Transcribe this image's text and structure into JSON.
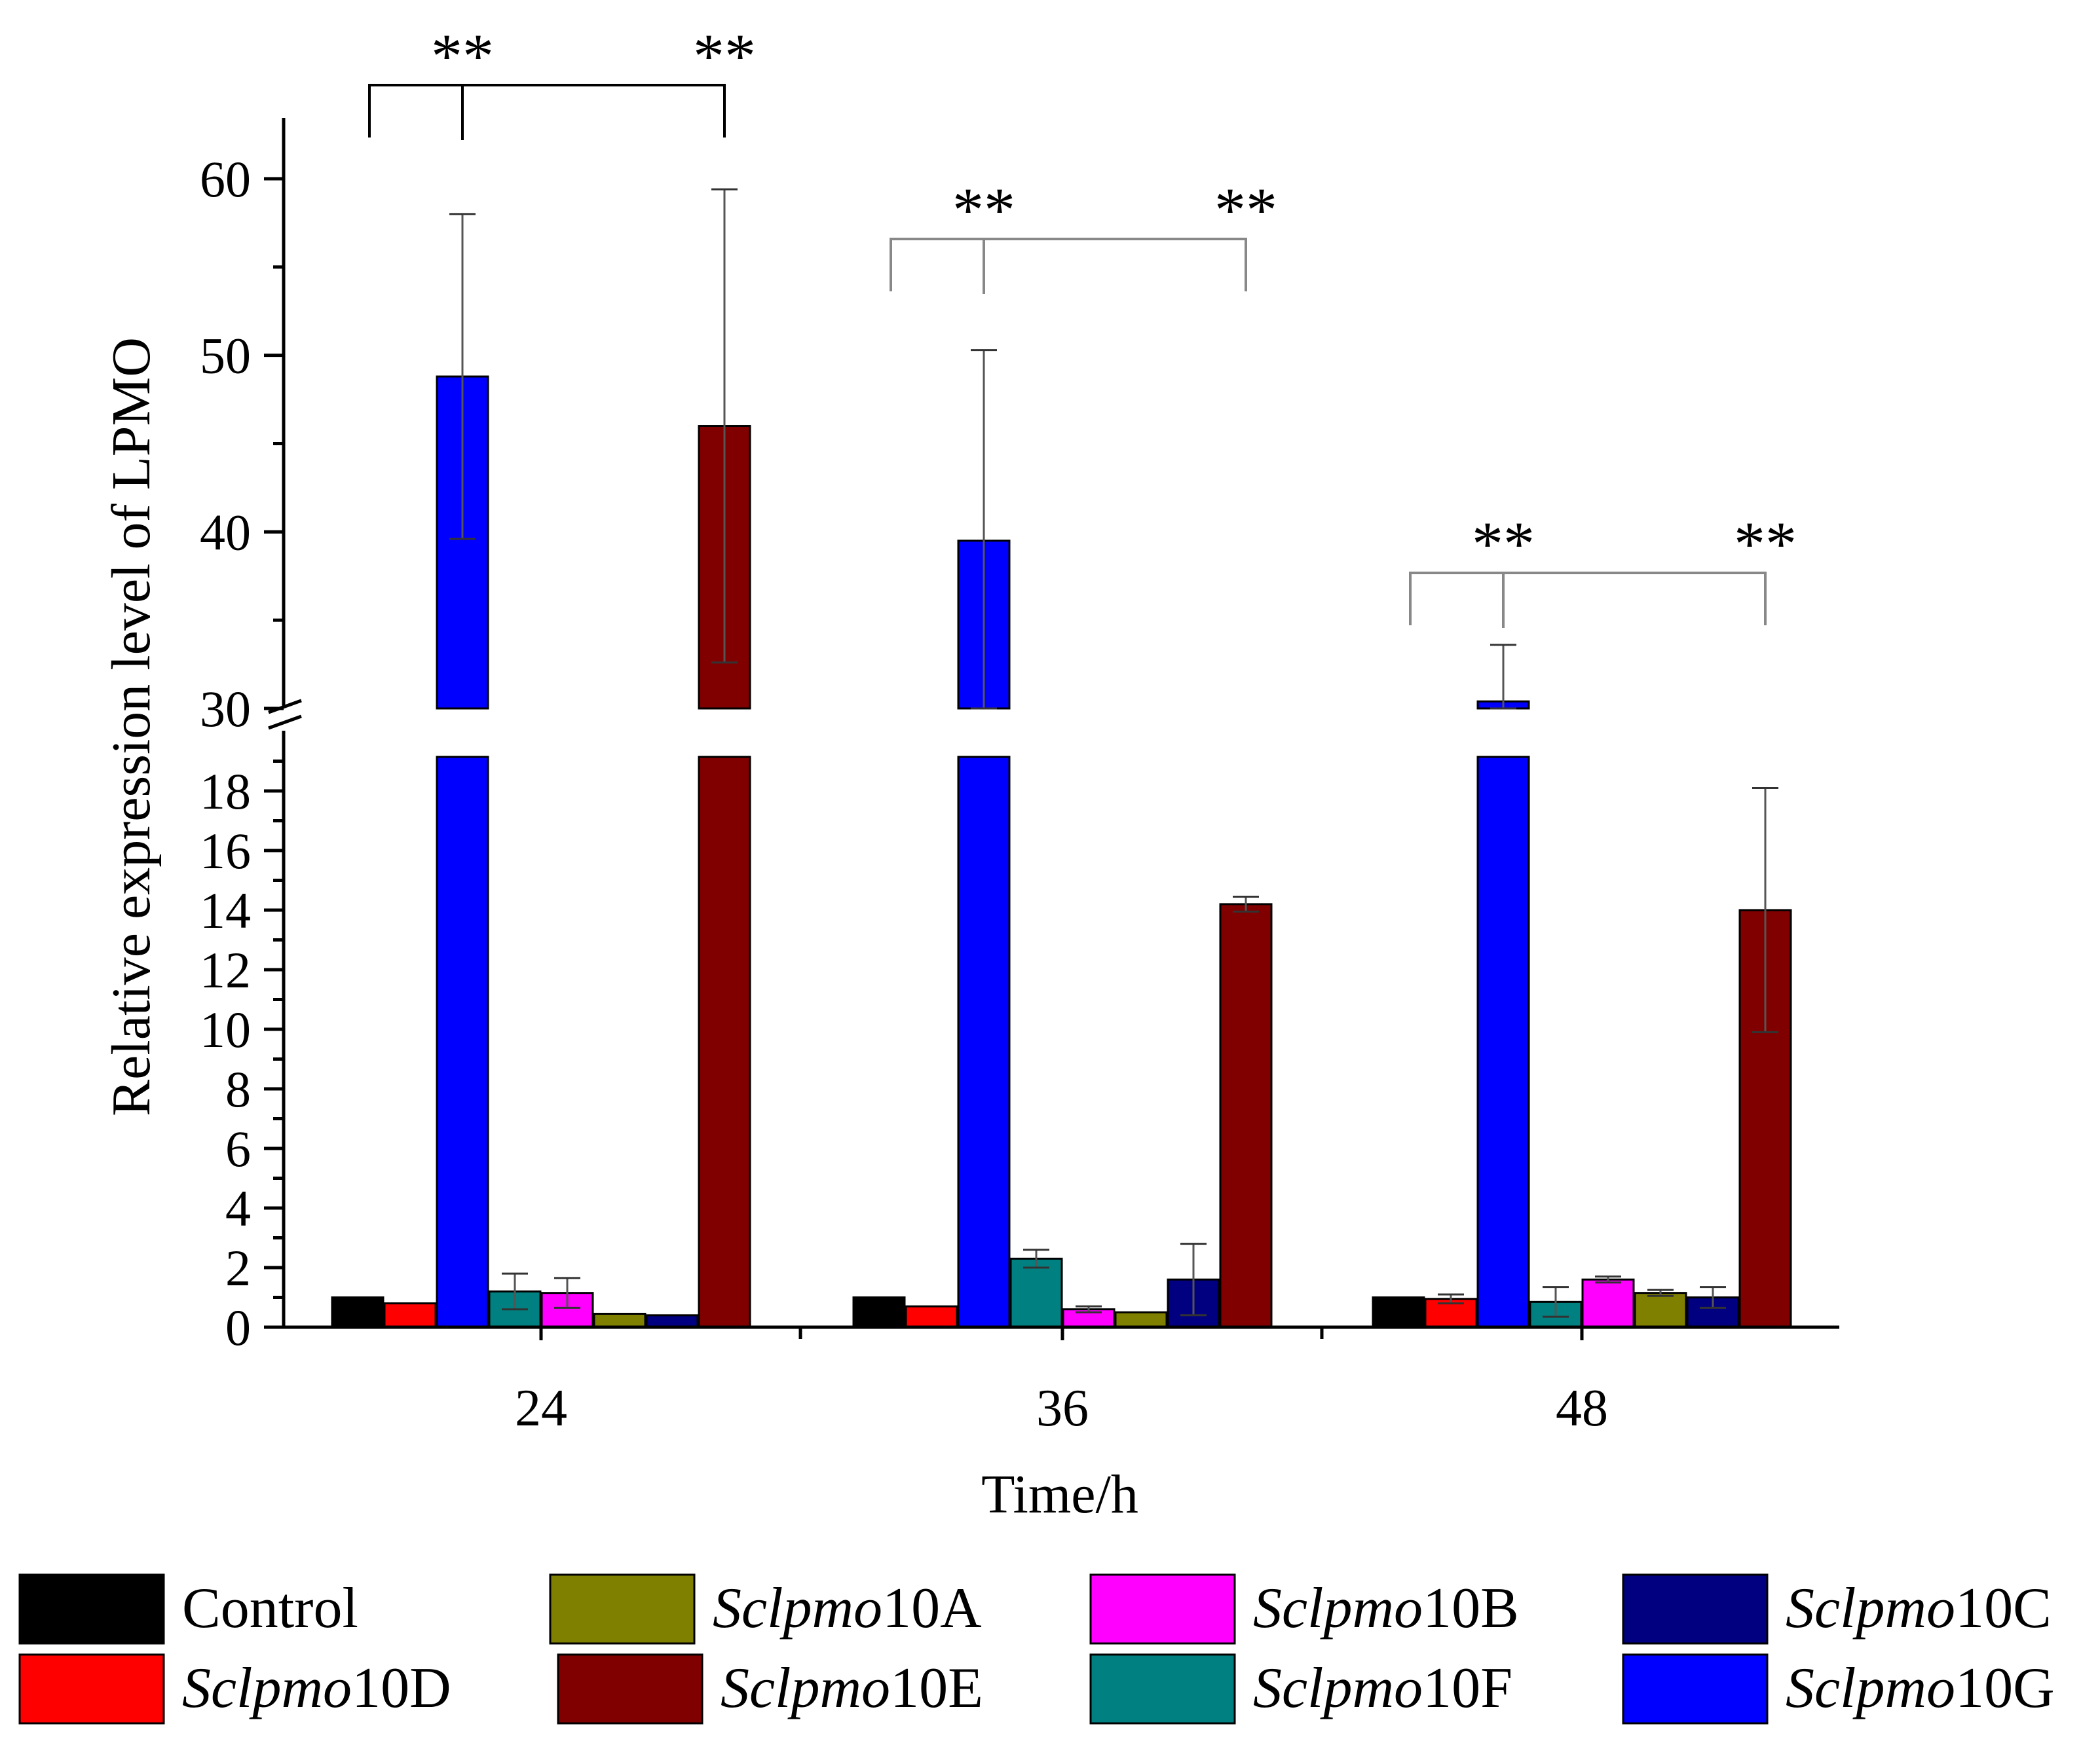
{
  "chart_data": {
    "type": "bar",
    "title": "",
    "xlabel": "Time/h",
    "ylabel": "Relative expression level of LPMO",
    "categories": [
      "24",
      "36",
      "48"
    ],
    "y_axis_break": [
      19.5,
      30
    ],
    "y_lower_range": [
      0,
      20
    ],
    "y_upper_range": [
      30,
      63
    ],
    "y_lower_ticks": [
      "0",
      "2",
      "4",
      "6",
      "8",
      "10",
      "12",
      "14",
      "16",
      "18"
    ],
    "y_upper_ticks": [
      "30",
      "40",
      "50",
      "60"
    ],
    "series": [
      {
        "name": "Control",
        "prefix": "",
        "suffix": "Control",
        "color": "#000000",
        "values": [
          1.0,
          1.0,
          1.0
        ],
        "errors": [
          0,
          0,
          0
        ]
      },
      {
        "name": "Sclpmo10D",
        "prefix": "Sclpmo",
        "suffix": "10D",
        "color": "#FF0000",
        "values": [
          0.8,
          0.7,
          0.95
        ],
        "errors": [
          0,
          0,
          0.15
        ]
      },
      {
        "name": "Sclpmo10G",
        "prefix": "Sclpmo",
        "suffix": "10G",
        "color": "#0000FF",
        "values": [
          48.8,
          39.5,
          30.4
        ],
        "errors": [
          9.2,
          10.8,
          3.2
        ]
      },
      {
        "name": "Sclpmo10F",
        "prefix": "Sclpmo",
        "suffix": "10F",
        "color": "#008080",
        "values": [
          1.2,
          2.3,
          0.85
        ],
        "errors": [
          0.6,
          0.3,
          0.5
        ]
      },
      {
        "name": "Sclpmo10B",
        "prefix": "Sclpmo",
        "suffix": "10B",
        "color": "#FF00FF",
        "values": [
          1.15,
          0.6,
          1.6
        ],
        "errors": [
          0.5,
          0.1,
          0.1
        ]
      },
      {
        "name": "Sclpmo10A",
        "prefix": "Sclpmo",
        "suffix": "10A",
        "color": "#808000",
        "values": [
          0.45,
          0.5,
          1.15
        ],
        "errors": [
          0,
          0,
          0.1
        ]
      },
      {
        "name": "Sclpmo10C",
        "prefix": "Sclpmo",
        "suffix": "10C",
        "color": "#000080",
        "values": [
          0.4,
          1.6,
          1.0
        ],
        "errors": [
          0,
          1.2,
          0.35
        ]
      },
      {
        "name": "Sclpmo10E",
        "prefix": "Sclpmo",
        "suffix": "10E",
        "color": "#800000",
        "values": [
          46.0,
          14.2,
          14.0
        ],
        "errors": [
          13.4,
          0.25,
          4.1
        ]
      }
    ],
    "significance": [
      {
        "category": "24",
        "marks": [
          "**",
          "**"
        ],
        "series": [
          "Sclpmo10G",
          "Sclpmo10E"
        ]
      },
      {
        "category": "36",
        "marks": [
          "**",
          "**"
        ],
        "series": [
          "Sclpmo10G",
          "Sclpmo10E"
        ]
      },
      {
        "category": "48",
        "marks": [
          "**",
          "**"
        ],
        "series": [
          "Sclpmo10G",
          "Sclpmo10E"
        ]
      }
    ],
    "legend_order": [
      "Control",
      "Sclpmo10A",
      "Sclpmo10B",
      "Sclpmo10C",
      "Sclpmo10D",
      "Sclpmo10E",
      "Sclpmo10F",
      "Sclpmo10G"
    ],
    "legend_position": "bottom"
  }
}
